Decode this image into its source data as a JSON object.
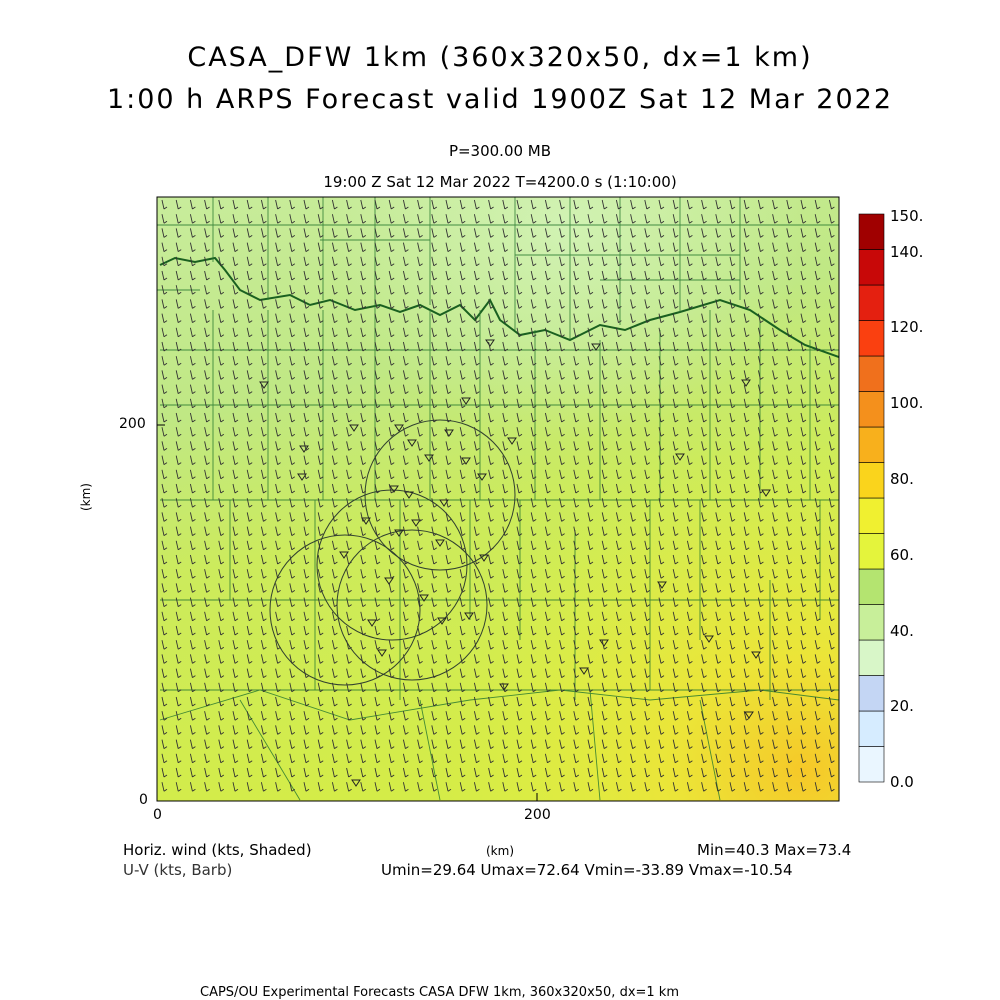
{
  "header": {
    "title_line1": "CASA_DFW 1km (360x320x50, dx=1 km)",
    "title_line2": "1:00 h ARPS Forecast valid 1900Z Sat 12 Mar 2022",
    "pressure_label": "P=300.00 MB",
    "time_label": "19:00 Z Sat 12 Mar 2022    T=4200.0 s (1:10:00)"
  },
  "axes": {
    "x_ticks": [
      "0",
      "200"
    ],
    "y_ticks": [
      "0",
      "200"
    ],
    "x_unit": "(km)",
    "y_unit": "(km)"
  },
  "colorbar": {
    "labels": [
      "0.0",
      "20.",
      "40.",
      "60.",
      "80.",
      "100.",
      "120.",
      "140.",
      "150."
    ],
    "colors": [
      "#eaf6ff",
      "#d6ecff",
      "#c4d6f4",
      "#d8f6c8",
      "#c8ef9a",
      "#b4e470",
      "#e4f43c",
      "#f0f030",
      "#fad41c",
      "#f8b01c",
      "#f4901c",
      "#f0701c",
      "#fa4010",
      "#e42010",
      "#c80808",
      "#a00000"
    ]
  },
  "footer": {
    "left1": "Horiz. wind (kts, Shaded)",
    "left2": "U-V (kts, Barb)",
    "center_unit": "(km)",
    "minmax": "Min=40.3 Max=73.4",
    "uv_stats": "Umin=29.64 Umax=72.64 Vmin=-33.89 Vmax=-10.54",
    "credit": "CAPS/OU Experimental Forecasts  CASA DFW 1km, 360x320x50, dx=1 km"
  }
}
